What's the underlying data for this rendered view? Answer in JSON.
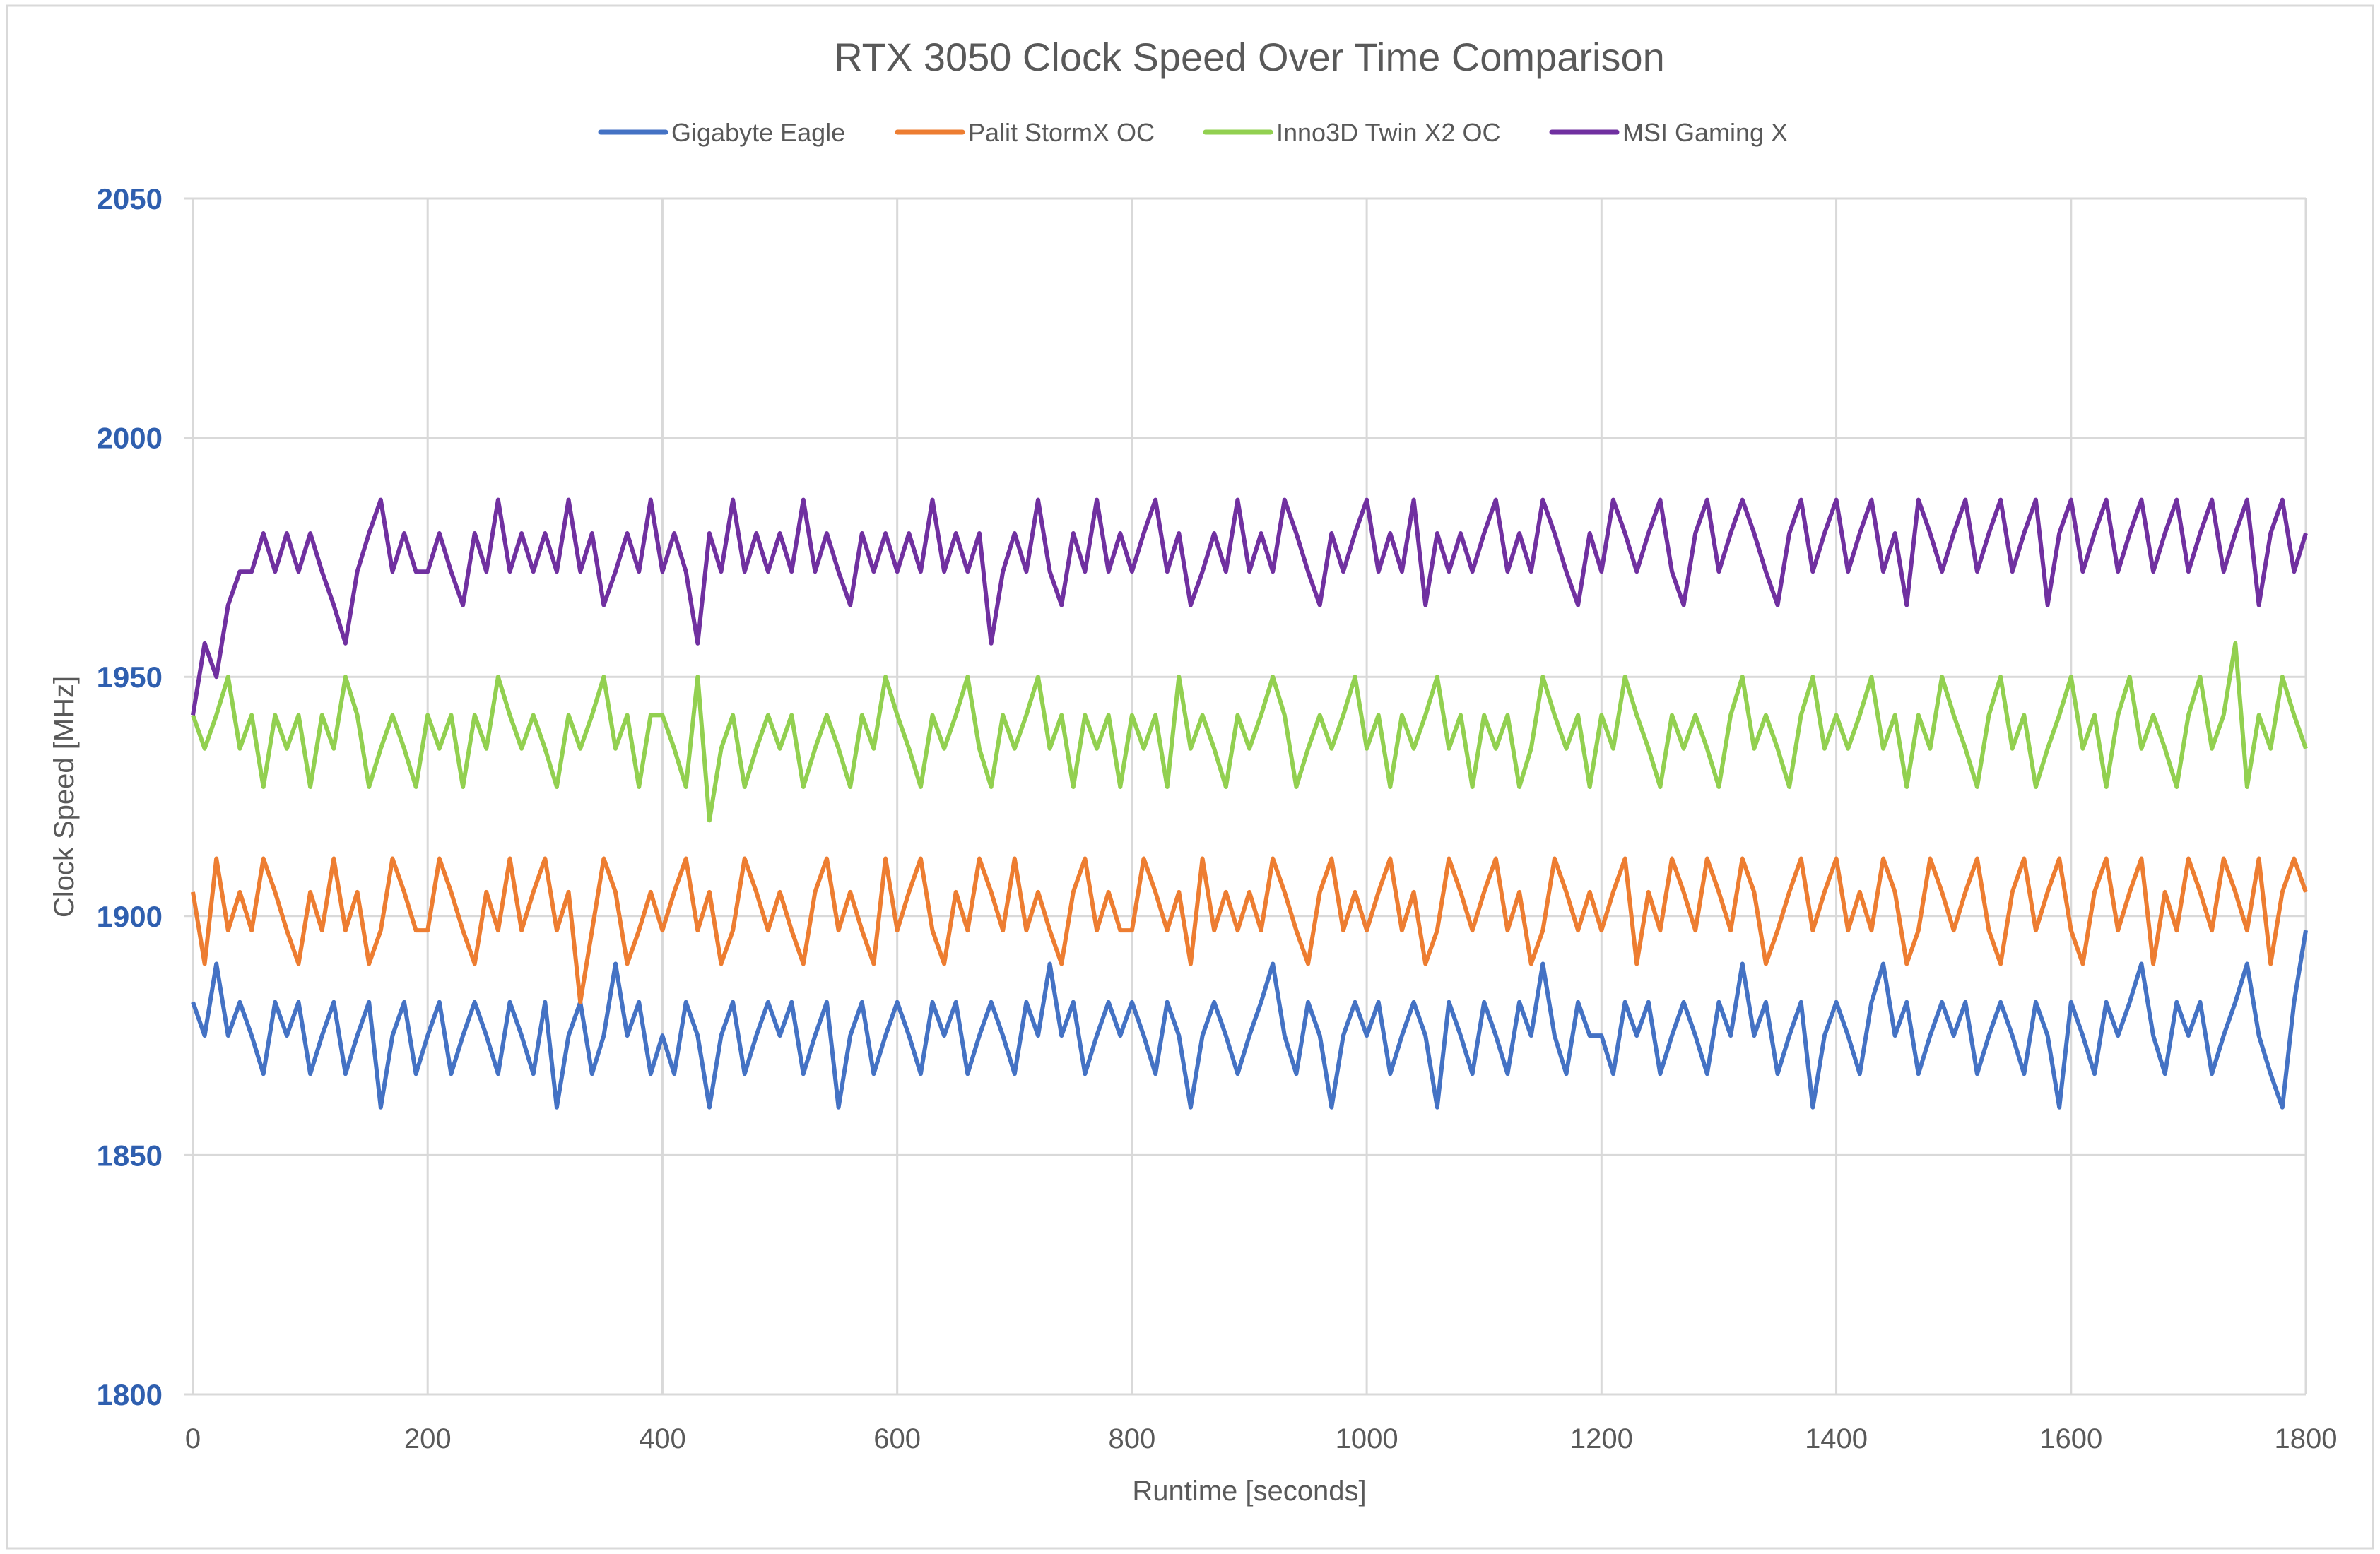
{
  "chart_data": {
    "type": "line",
    "title": "RTX 3050 Clock Speed Over Time Comparison",
    "xlabel": "Runtime [seconds]",
    "ylabel": "Clock Speed [MHz]",
    "xlim": [
      0,
      1800
    ],
    "ylim": [
      1800,
      2050
    ],
    "x_ticks": [
      "0",
      "200",
      "400",
      "600",
      "800",
      "1000",
      "1200",
      "1400",
      "1600",
      "1800"
    ],
    "y_ticks": [
      "1800",
      "1850",
      "1900",
      "1950",
      "2000",
      "2050"
    ],
    "grid": true,
    "legend_position": "top",
    "x_start": 0,
    "x_step": 10,
    "series": [
      {
        "name": "Gigabyte Eagle",
        "color": "#4472C4",
        "values": [
          1882,
          1875,
          1890,
          1875,
          1882,
          1875,
          1867,
          1882,
          1875,
          1882,
          1867,
          1875,
          1882,
          1867,
          1875,
          1882,
          1860,
          1875,
          1882,
          1867,
          1875,
          1882,
          1867,
          1875,
          1882,
          1875,
          1867,
          1882,
          1875,
          1867,
          1882,
          1860,
          1875,
          1882,
          1867,
          1875,
          1890,
          1875,
          1882,
          1867,
          1875,
          1867,
          1882,
          1875,
          1860,
          1875,
          1882,
          1867,
          1875,
          1882,
          1875,
          1882,
          1867,
          1875,
          1882,
          1860,
          1875,
          1882,
          1867,
          1875,
          1882,
          1875,
          1867,
          1882,
          1875,
          1882,
          1867,
          1875,
          1882,
          1875,
          1867,
          1882,
          1875,
          1890,
          1875,
          1882,
          1867,
          1875,
          1882,
          1875,
          1882,
          1875,
          1867,
          1882,
          1875,
          1860,
          1875,
          1882,
          1875,
          1867,
          1875,
          1882,
          1890,
          1875,
          1867,
          1882,
          1875,
          1860,
          1875,
          1882,
          1875,
          1882,
          1867,
          1875,
          1882,
          1875,
          1860,
          1882,
          1875,
          1867,
          1882,
          1875,
          1867,
          1882,
          1875,
          1890,
          1875,
          1867,
          1882,
          1875,
          1875,
          1867,
          1882,
          1875,
          1882,
          1867,
          1875,
          1882,
          1875,
          1867,
          1882,
          1875,
          1890,
          1875,
          1882,
          1867,
          1875,
          1882,
          1860,
          1875,
          1882,
          1875,
          1867,
          1882,
          1890,
          1875,
          1882,
          1867,
          1875,
          1882,
          1875,
          1882,
          1867,
          1875,
          1882,
          1875,
          1867,
          1882,
          1875,
          1860,
          1882,
          1875,
          1867,
          1882,
          1875,
          1882,
          1890,
          1875,
          1867,
          1882,
          1875,
          1882,
          1867,
          1875,
          1882,
          1890,
          1875,
          1867,
          1860,
          1882,
          1897
        ]
      },
      {
        "name": "Palit StormX OC",
        "color": "#ED7D31",
        "values": [
          1905,
          1890,
          1912,
          1897,
          1905,
          1897,
          1912,
          1905,
          1897,
          1890,
          1905,
          1897,
          1912,
          1897,
          1905,
          1890,
          1897,
          1912,
          1905,
          1897,
          1897,
          1912,
          1905,
          1897,
          1890,
          1905,
          1897,
          1912,
          1897,
          1905,
          1912,
          1897,
          1905,
          1882,
          1897,
          1912,
          1905,
          1890,
          1897,
          1905,
          1897,
          1905,
          1912,
          1897,
          1905,
          1890,
          1897,
          1912,
          1905,
          1897,
          1905,
          1897,
          1890,
          1905,
          1912,
          1897,
          1905,
          1897,
          1890,
          1912,
          1897,
          1905,
          1912,
          1897,
          1890,
          1905,
          1897,
          1912,
          1905,
          1897,
          1912,
          1897,
          1905,
          1897,
          1890,
          1905,
          1912,
          1897,
          1905,
          1897,
          1897,
          1912,
          1905,
          1897,
          1905,
          1890,
          1912,
          1897,
          1905,
          1897,
          1905,
          1897,
          1912,
          1905,
          1897,
          1890,
          1905,
          1912,
          1897,
          1905,
          1897,
          1905,
          1912,
          1897,
          1905,
          1890,
          1897,
          1912,
          1905,
          1897,
          1905,
          1912,
          1897,
          1905,
          1890,
          1897,
          1912,
          1905,
          1897,
          1905,
          1897,
          1905,
          1912,
          1890,
          1905,
          1897,
          1912,
          1905,
          1897,
          1912,
          1905,
          1897,
          1912,
          1905,
          1890,
          1897,
          1905,
          1912,
          1897,
          1905,
          1912,
          1897,
          1905,
          1897,
          1912,
          1905,
          1890,
          1897,
          1912,
          1905,
          1897,
          1905,
          1912,
          1897,
          1890,
          1905,
          1912,
          1897,
          1905,
          1912,
          1897,
          1890,
          1905,
          1912,
          1897,
          1905,
          1912,
          1890,
          1905,
          1897,
          1912,
          1905,
          1897,
          1912,
          1905,
          1897,
          1912,
          1890,
          1905,
          1912,
          1905
        ]
      },
      {
        "name": "Inno3D Twin X2 OC",
        "color": "#92D050",
        "values": [
          1942,
          1935,
          1942,
          1950,
          1935,
          1942,
          1927,
          1942,
          1935,
          1942,
          1927,
          1942,
          1935,
          1950,
          1942,
          1927,
          1935,
          1942,
          1935,
          1927,
          1942,
          1935,
          1942,
          1927,
          1942,
          1935,
          1950,
          1942,
          1935,
          1942,
          1935,
          1927,
          1942,
          1935,
          1942,
          1950,
          1935,
          1942,
          1927,
          1942,
          1942,
          1935,
          1927,
          1950,
          1920,
          1935,
          1942,
          1927,
          1935,
          1942,
          1935,
          1942,
          1927,
          1935,
          1942,
          1935,
          1927,
          1942,
          1935,
          1950,
          1942,
          1935,
          1927,
          1942,
          1935,
          1942,
          1950,
          1935,
          1927,
          1942,
          1935,
          1942,
          1950,
          1935,
          1942,
          1927,
          1942,
          1935,
          1942,
          1927,
          1942,
          1935,
          1942,
          1927,
          1950,
          1935,
          1942,
          1935,
          1927,
          1942,
          1935,
          1942,
          1950,
          1942,
          1927,
          1935,
          1942,
          1935,
          1942,
          1950,
          1935,
          1942,
          1927,
          1942,
          1935,
          1942,
          1950,
          1935,
          1942,
          1927,
          1942,
          1935,
          1942,
          1927,
          1935,
          1950,
          1942,
          1935,
          1942,
          1927,
          1942,
          1935,
          1950,
          1942,
          1935,
          1927,
          1942,
          1935,
          1942,
          1935,
          1927,
          1942,
          1950,
          1935,
          1942,
          1935,
          1927,
          1942,
          1950,
          1935,
          1942,
          1935,
          1942,
          1950,
          1935,
          1942,
          1927,
          1942,
          1935,
          1950,
          1942,
          1935,
          1927,
          1942,
          1950,
          1935,
          1942,
          1927,
          1935,
          1942,
          1950,
          1935,
          1942,
          1927,
          1942,
          1950,
          1935,
          1942,
          1935,
          1927,
          1942,
          1950,
          1935,
          1942,
          1957,
          1927,
          1942,
          1935,
          1950,
          1942,
          1935
        ]
      },
      {
        "name": "MSI Gaming X",
        "color": "#7030A0",
        "values": [
          1942,
          1957,
          1950,
          1965,
          1972,
          1972,
          1980,
          1972,
          1980,
          1972,
          1980,
          1972,
          1965,
          1957,
          1972,
          1980,
          1987,
          1972,
          1980,
          1972,
          1972,
          1980,
          1972,
          1965,
          1980,
          1972,
          1987,
          1972,
          1980,
          1972,
          1980,
          1972,
          1987,
          1972,
          1980,
          1965,
          1972,
          1980,
          1972,
          1987,
          1972,
          1980,
          1972,
          1957,
          1980,
          1972,
          1987,
          1972,
          1980,
          1972,
          1980,
          1972,
          1987,
          1972,
          1980,
          1972,
          1965,
          1980,
          1972,
          1980,
          1972,
          1980,
          1972,
          1987,
          1972,
          1980,
          1972,
          1980,
          1957,
          1972,
          1980,
          1972,
          1987,
          1972,
          1965,
          1980,
          1972,
          1987,
          1972,
          1980,
          1972,
          1980,
          1987,
          1972,
          1980,
          1965,
          1972,
          1980,
          1972,
          1987,
          1972,
          1980,
          1972,
          1987,
          1980,
          1972,
          1965,
          1980,
          1972,
          1980,
          1987,
          1972,
          1980,
          1972,
          1987,
          1965,
          1980,
          1972,
          1980,
          1972,
          1980,
          1987,
          1972,
          1980,
          1972,
          1987,
          1980,
          1972,
          1965,
          1980,
          1972,
          1987,
          1980,
          1972,
          1980,
          1987,
          1972,
          1965,
          1980,
          1987,
          1972,
          1980,
          1987,
          1980,
          1972,
          1965,
          1980,
          1987,
          1972,
          1980,
          1987,
          1972,
          1980,
          1987,
          1972,
          1980,
          1965,
          1987,
          1980,
          1972,
          1980,
          1987,
          1972,
          1980,
          1987,
          1972,
          1980,
          1987,
          1965,
          1980,
          1987,
          1972,
          1980,
          1987,
          1972,
          1980,
          1987,
          1972,
          1980,
          1987,
          1972,
          1980,
          1987,
          1972,
          1980,
          1987,
          1965,
          1980,
          1987,
          1972,
          1980
        ]
      }
    ]
  }
}
